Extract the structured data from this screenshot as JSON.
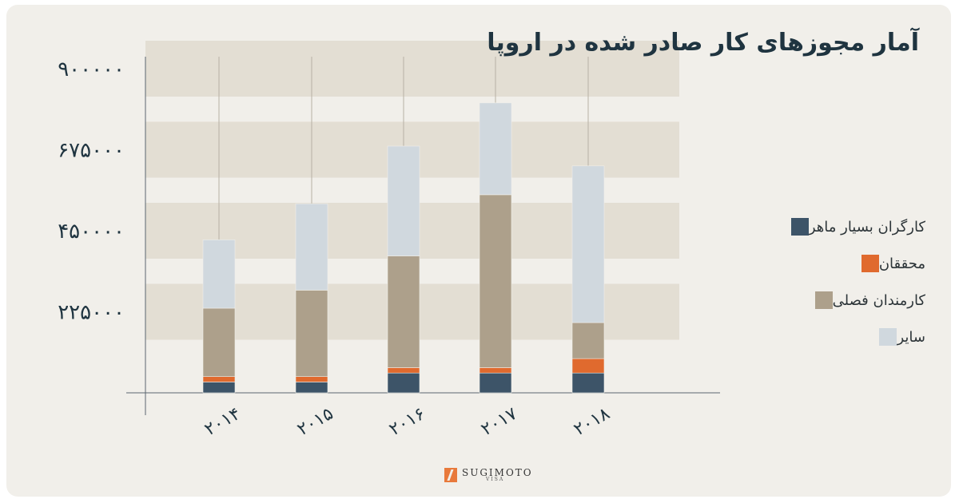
{
  "title": "آمار مجوزهای کار صادر شده در اروپا",
  "brand": {
    "name": "SUGIMOTO",
    "sub": "VISA"
  },
  "chart_data": {
    "type": "bar",
    "stacked": true,
    "categories": [
      "۲۰۱۴",
      "۲۰۱۵",
      "۲۰۱۶",
      "۲۰۱۷",
      "۲۰۱۸"
    ],
    "yticks": [
      225000,
      450000,
      675000,
      900000
    ],
    "ytick_labels": [
      "۲۲۵۰۰۰",
      "۴۵۰۰۰۰",
      "۶۷۵۰۰۰",
      "۹۰۰۰۰۰"
    ],
    "ylim": [
      0,
      1000000
    ],
    "series": [
      {
        "name": "کارگران بسیار ماهر",
        "color": "#3d5468",
        "values": [
          30000,
          30000,
          55000,
          55000,
          55000
        ]
      },
      {
        "name": "محققان",
        "color": "#e06a2e",
        "values": [
          15000,
          15000,
          15000,
          15000,
          40000
        ]
      },
      {
        "name": "کارمندان فصلی",
        "color": "#ada08b",
        "values": [
          190000,
          240000,
          310000,
          480000,
          100000
        ]
      },
      {
        "name": "سایر",
        "color": "#d0d8de",
        "values": [
          190000,
          240000,
          305000,
          255000,
          435000
        ]
      }
    ],
    "legend_position": "right"
  }
}
